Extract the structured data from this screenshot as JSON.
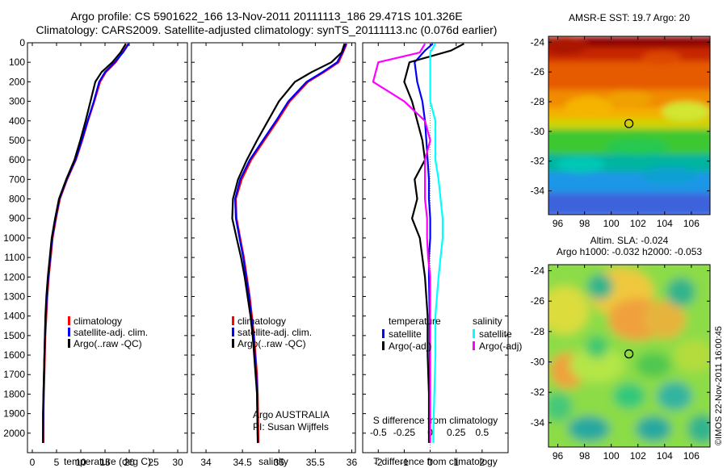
{
  "title": {
    "line1": "Argo profile: CS 5901622_166 13-Nov-2011 20111113_186 29.471S 101.326E",
    "line2": "Climatology: CARS2009. Satellite-adjusted climatology: synTS_20111113.nc (0.076d earlier)"
  },
  "colors": {
    "climatology": "#ff0000",
    "satellite": "#0000ff",
    "argo": "#000000",
    "sal_sat": "#00ffff",
    "sal_argo": "#ff00ff"
  },
  "chart_data": [
    {
      "type": "line",
      "name": "temperature-profile",
      "xlabel": "temperature (deg C)",
      "xlim": [
        -1,
        32
      ],
      "ylim": [
        0,
        2100
      ],
      "y_reversed": true,
      "xticks": [
        0,
        5,
        10,
        15,
        20,
        25,
        30
      ],
      "yticks": [
        0,
        100,
        200,
        300,
        400,
        500,
        600,
        700,
        800,
        900,
        1000,
        1100,
        1200,
        1300,
        1400,
        1500,
        1600,
        1700,
        1800,
        1900,
        2000
      ],
      "legend": [
        "climatology",
        "satellite-adj. clim.",
        "Argo(..raw -QC)"
      ],
      "series": [
        {
          "name": "climatology",
          "x": [
            19.8,
            18.6,
            17.2,
            15.2,
            14.0,
            12.8,
            11.5,
            10.3,
            9.0,
            7.2,
            5.7,
            4.9,
            4.2,
            3.8,
            3.4,
            3.1,
            2.9,
            2.7,
            2.6,
            2.5,
            2.4,
            2.3,
            2.3
          ],
          "y": [
            5,
            50,
            100,
            150,
            200,
            300,
            400,
            500,
            600,
            700,
            800,
            900,
            1000,
            1100,
            1200,
            1300,
            1400,
            1500,
            1600,
            1700,
            1800,
            1900,
            2050
          ]
        },
        {
          "name": "satellite-adj. clim.",
          "x": [
            19.9,
            18.7,
            17.0,
            15.0,
            13.8,
            12.7,
            11.4,
            10.2,
            8.9,
            7.1,
            5.6,
            4.8,
            4.1,
            3.7,
            3.3,
            3.0,
            2.8,
            2.6,
            2.5,
            2.4,
            2.3,
            2.3,
            2.2
          ],
          "y": [
            5,
            50,
            100,
            150,
            200,
            300,
            400,
            500,
            600,
            700,
            800,
            900,
            1000,
            1100,
            1200,
            1300,
            1400,
            1500,
            1600,
            1700,
            1800,
            1900,
            2050
          ]
        },
        {
          "name": "Argo(..raw -QC)",
          "x": [
            19.3,
            18.2,
            16.5,
            14.3,
            13.0,
            12.0,
            11.0,
            9.9,
            8.7,
            7.0,
            5.5,
            4.7,
            4.0,
            3.6,
            3.2,
            2.9,
            2.7,
            2.6,
            2.5,
            2.4,
            2.3,
            2.2,
            2.2
          ],
          "y": [
            5,
            50,
            100,
            150,
            200,
            300,
            400,
            500,
            600,
            700,
            800,
            900,
            1000,
            1100,
            1200,
            1300,
            1400,
            1500,
            1600,
            1700,
            1800,
            1900,
            2050
          ]
        }
      ]
    },
    {
      "type": "line",
      "name": "salinity-profile",
      "xlabel": "salinity",
      "xlim": [
        33.8,
        36.05
      ],
      "ylim": [
        0,
        2100
      ],
      "y_reversed": true,
      "xticks": [
        34,
        34.5,
        35,
        35.5,
        36
      ],
      "xticklabels": [
        "34",
        "34.5",
        "35",
        "35.5",
        "36"
      ],
      "legend": [
        "climatology",
        "satellite-adj. clim.",
        "Argo(..raw -QC)"
      ],
      "series": [
        {
          "name": "climatology",
          "x": [
            35.93,
            35.88,
            35.82,
            35.62,
            35.4,
            35.15,
            34.98,
            34.8,
            34.62,
            34.49,
            34.41,
            34.42,
            34.47,
            34.52,
            34.56,
            34.6,
            34.63,
            34.66,
            34.68,
            34.7,
            34.71,
            34.72
          ],
          "y": [
            5,
            50,
            100,
            150,
            200,
            300,
            400,
            500,
            600,
            700,
            800,
            900,
            1000,
            1100,
            1200,
            1300,
            1400,
            1500,
            1600,
            1700,
            1800,
            2050
          ]
        },
        {
          "name": "satellite-adj. clim.",
          "x": [
            35.92,
            35.87,
            35.8,
            35.6,
            35.38,
            35.13,
            34.96,
            34.78,
            34.6,
            34.47,
            34.4,
            34.41,
            34.46,
            34.51,
            34.55,
            34.59,
            34.62,
            34.65,
            34.67,
            34.69,
            34.7,
            34.71
          ],
          "y": [
            5,
            50,
            100,
            150,
            200,
            300,
            400,
            500,
            600,
            700,
            800,
            900,
            1000,
            1100,
            1200,
            1300,
            1400,
            1500,
            1600,
            1700,
            1800,
            2050
          ]
        },
        {
          "name": "Argo(..raw -QC)",
          "x": [
            35.9,
            35.86,
            35.72,
            35.45,
            35.22,
            35.0,
            34.85,
            34.7,
            34.56,
            34.44,
            34.37,
            34.36,
            34.42,
            34.48,
            34.53,
            34.57,
            34.61,
            34.64,
            34.66,
            34.68,
            34.7,
            34.71
          ],
          "y": [
            5,
            50,
            100,
            150,
            200,
            300,
            400,
            500,
            600,
            700,
            800,
            900,
            1000,
            1100,
            1200,
            1300,
            1400,
            1500,
            1600,
            1700,
            1800,
            2050
          ]
        }
      ],
      "annotation": [
        "Argo AUSTRALIA",
        "PI: Susan Wijffels"
      ]
    },
    {
      "type": "line",
      "name": "difference-profile",
      "xlabel": "T difference from climatology",
      "xlabel_top": "S difference from climatology",
      "xlim": [
        -2.6,
        3.0
      ],
      "ylim": [
        0,
        2100
      ],
      "y_reversed": true,
      "xticks": [
        -2,
        -1,
        0,
        1,
        2
      ],
      "s_xticks": [
        -0.5,
        -0.25,
        0,
        0.25,
        0.5
      ],
      "legend_groups": [
        {
          "title": "temperature",
          "items": [
            "satellite",
            "Argo(-adj)"
          ]
        },
        {
          "title": "salinity",
          "items": [
            "satellite",
            "Argo(-adj)"
          ]
        }
      ],
      "series": [
        {
          "name": "temperature satellite",
          "x": [
            0.1,
            -0.2,
            -0.6,
            -0.5,
            -0.3,
            -0.2,
            -0.15,
            -0.1,
            -0.05,
            -0.05,
            0.0,
            0.0,
            -0.05,
            -0.05,
            -0.02,
            -0.02,
            -0.02,
            -0.02,
            -0.02,
            -0.02
          ],
          "y": [
            5,
            40,
            100,
            200,
            300,
            400,
            500,
            600,
            700,
            800,
            900,
            1000,
            1100,
            1200,
            1400,
            1600,
            1800,
            1900,
            2000,
            2050
          ]
        },
        {
          "name": "temperature Argo(-adj)",
          "x": [
            1.3,
            0.8,
            -0.8,
            -1.0,
            -0.7,
            -0.5,
            -0.3,
            -0.2,
            -0.6,
            -0.5,
            -0.7,
            -0.4,
            -0.3,
            -0.2,
            -0.1,
            -0.1,
            -0.05,
            -0.05,
            -0.05,
            -0.05
          ],
          "y": [
            5,
            40,
            100,
            200,
            300,
            400,
            500,
            600,
            700,
            800,
            900,
            1000,
            1100,
            1200,
            1400,
            1600,
            1800,
            1900,
            2000,
            2050
          ]
        },
        {
          "name": "salinity satellite",
          "x": [
            0.05,
            0.0,
            0.0,
            0.0,
            0.0,
            0.05,
            0.05,
            0.05,
            0.08,
            0.1,
            0.12,
            0.12,
            0.1,
            0.08,
            0.05,
            0.05,
            0.04,
            0.03,
            0.03
          ],
          "y": [
            5,
            50,
            100,
            200,
            300,
            400,
            500,
            600,
            700,
            800,
            900,
            1000,
            1100,
            1200,
            1400,
            1600,
            1800,
            2000,
            2050
          ]
        },
        {
          "name": "salinity Argo(-adj)",
          "x": [
            -0.05,
            -0.1,
            -0.5,
            -0.55,
            -0.25,
            -0.05,
            0.0,
            -0.05,
            -0.05,
            -0.05,
            -0.03,
            -0.03,
            -0.02,
            0.0,
            0.0,
            0.0,
            0.0,
            0.0,
            0.0
          ],
          "y": [
            5,
            50,
            100,
            200,
            300,
            400,
            500,
            600,
            700,
            800,
            900,
            1000,
            1100,
            1200,
            1400,
            1600,
            1800,
            2000,
            2050
          ]
        }
      ]
    },
    {
      "type": "heatmap",
      "name": "sst-map",
      "title": "AMSR-E SST: 19.7 Argo: 20",
      "xticks": [
        96,
        98,
        100,
        102,
        104,
        106
      ],
      "yticks": [
        -24,
        -26,
        -28,
        -30,
        -32,
        -34
      ],
      "xlim": [
        95.3,
        107.4
      ],
      "ylim": [
        -35.6,
        -23.6
      ],
      "marker": {
        "lon": 101.326,
        "lat": -29.471
      }
    },
    {
      "type": "heatmap",
      "name": "sla-map",
      "title": "Altim. SLA: -0.024",
      "subtitle": "Argo h1000: -0.032 h2000: -0.053",
      "xticks": [
        96,
        98,
        100,
        102,
        104,
        106
      ],
      "yticks": [
        -24,
        -26,
        -28,
        -30,
        -32,
        -34
      ],
      "xlim": [
        95.3,
        107.4
      ],
      "ylim": [
        -35.6,
        -23.6
      ],
      "marker": {
        "lon": 101.326,
        "lat": -29.471
      }
    }
  ],
  "credit": "©IMOS 22-Nov-2011 16:00:45"
}
